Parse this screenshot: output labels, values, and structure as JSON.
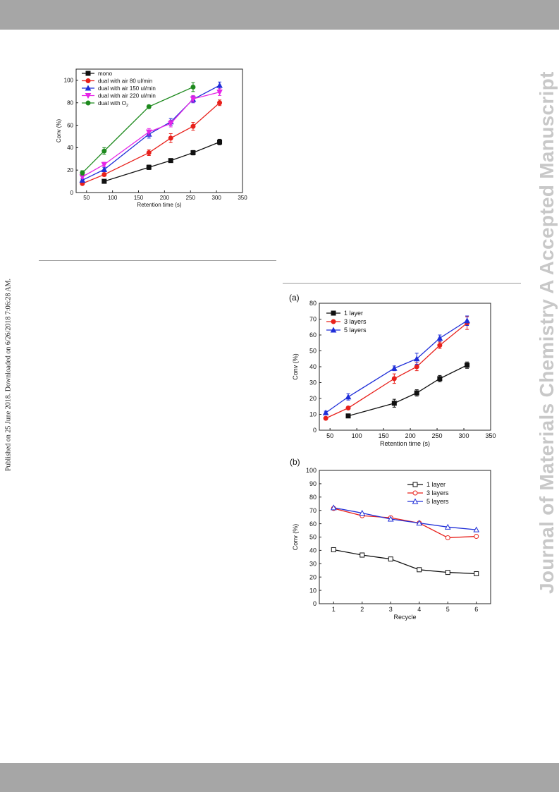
{
  "watermark": "Journal of Materials Chemistry A Accepted Manuscript",
  "published_note": "Published on 25 June 2018. Downloaded on 6/26/2018 7:06:28 AM.",
  "panel_a_label": "(a)",
  "panel_b_label": "(b)",
  "chart_data": [
    {
      "type": "line",
      "xlabel": "Retention time (s)",
      "ylabel": "Conv (%)",
      "xlim": [
        30,
        350
      ],
      "ylim": [
        0,
        110
      ],
      "xticks": [
        50,
        100,
        150,
        200,
        250,
        300,
        350
      ],
      "yticks": [
        0,
        20,
        40,
        60,
        80,
        100
      ],
      "legend": "top-left",
      "error_bars": true,
      "series": [
        {
          "name": "mono",
          "color": "#111111",
          "marker": "square",
          "x": [
            84,
            170,
            212,
            255,
            306
          ],
          "y": [
            10,
            22.5,
            28.5,
            35.5,
            45
          ],
          "err": [
            1.5,
            2,
            1,
            2,
            2.5
          ]
        },
        {
          "name": "dual with air 80 ul/min",
          "color": "#e8201b",
          "marker": "circle",
          "x": [
            42,
            84,
            170,
            212,
            255,
            306
          ],
          "y": [
            8,
            16,
            35.5,
            48.5,
            59,
            80
          ],
          "err": [
            1,
            1.5,
            2.5,
            4,
            3.5,
            2.5
          ]
        },
        {
          "name": "dual with air 150 ul/min",
          "color": "#1f2ed8",
          "marker": "triangle-up",
          "x": [
            42,
            84,
            170,
            212,
            255,
            306
          ],
          "y": [
            11,
            20.5,
            52,
            63,
            83,
            95.5
          ],
          "err": [
            1,
            2,
            3.5,
            3,
            3,
            3
          ]
        },
        {
          "name": "dual with air 220 ul/min",
          "color": "#e625e6",
          "marker": "triangle-down",
          "x": [
            42,
            84,
            170,
            212,
            255,
            306
          ],
          "y": [
            14,
            25,
            54,
            61.5,
            83.5,
            89.5
          ],
          "err": [
            1.5,
            2,
            3,
            3,
            3,
            3
          ]
        },
        {
          "name": "dual with O",
          "subscript": "2",
          "color": "#1e8a1e",
          "marker": "circle",
          "x": [
            42,
            84,
            170,
            255
          ],
          "y": [
            17.5,
            37,
            76.5,
            94
          ],
          "err": [
            2,
            3,
            1.5,
            4
          ]
        }
      ]
    },
    {
      "type": "line",
      "xlabel": "Retention time (s)",
      "ylabel": "Conv (%)",
      "xlim": [
        30,
        350
      ],
      "ylim": [
        0,
        80
      ],
      "xticks": [
        50,
        100,
        150,
        200,
        250,
        300,
        350
      ],
      "yticks": [
        0,
        10,
        20,
        30,
        40,
        50,
        60,
        70,
        80
      ],
      "legend": "top-left",
      "error_bars": true,
      "series": [
        {
          "name": "1 layer",
          "color": "#111111",
          "marker": "square",
          "x": [
            84,
            170,
            212,
            255,
            306
          ],
          "y": [
            9,
            17,
            23.5,
            32.5,
            41
          ],
          "err": [
            0.8,
            2.5,
            2,
            2,
            2
          ]
        },
        {
          "name": "3 layers",
          "color": "#e8201b",
          "marker": "circle",
          "x": [
            42,
            84,
            170,
            212,
            255,
            306
          ],
          "y": [
            7.5,
            14,
            32.5,
            40,
            53.5,
            67.5
          ],
          "err": [
            0.8,
            1,
            3,
            2.5,
            2,
            4
          ]
        },
        {
          "name": "5 layers",
          "color": "#1f2ed8",
          "marker": "triangle-up",
          "x": [
            42,
            84,
            170,
            212,
            255,
            306
          ],
          "y": [
            11,
            21,
            39,
            45,
            58,
            69
          ],
          "err": [
            1,
            2,
            1.5,
            3.5,
            2,
            3
          ]
        }
      ]
    },
    {
      "type": "line",
      "xlabel": "Recycle",
      "ylabel": "Conv (%)",
      "xlim": [
        0.5,
        6.5
      ],
      "ylim": [
        0,
        100
      ],
      "xticks": [
        1,
        2,
        3,
        4,
        5,
        6
      ],
      "yticks": [
        0,
        10,
        20,
        30,
        40,
        50,
        60,
        70,
        80,
        90,
        100
      ],
      "legend": "top-right",
      "series": [
        {
          "name": "1 layer",
          "color": "#111111",
          "marker": "open-square",
          "x": [
            1,
            2,
            3,
            4,
            5,
            6
          ],
          "y": [
            40.5,
            36.5,
            33.5,
            25.5,
            23.5,
            22.5
          ]
        },
        {
          "name": "3 layers",
          "color": "#e8201b",
          "marker": "open-circle",
          "x": [
            1,
            2,
            3,
            4,
            5,
            6
          ],
          "y": [
            71.5,
            66,
            64.5,
            60.5,
            49.5,
            50.5
          ]
        },
        {
          "name": "5 layers",
          "color": "#1f2ed8",
          "marker": "open-triangle-up",
          "x": [
            1,
            2,
            3,
            4,
            5,
            6
          ],
          "y": [
            72,
            68,
            63.5,
            60.5,
            57.5,
            55.5
          ]
        }
      ]
    }
  ]
}
